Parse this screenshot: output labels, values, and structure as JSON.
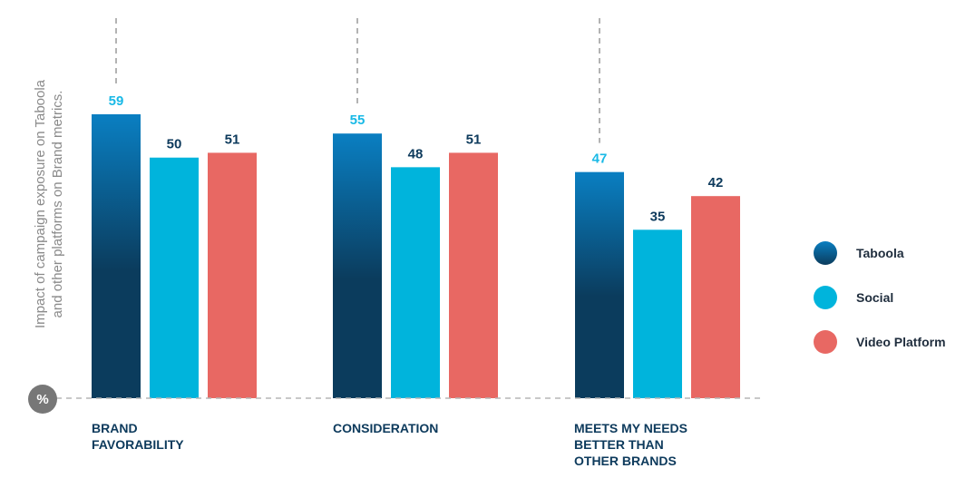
{
  "chart_data": {
    "type": "bar",
    "ylabel_lines": [
      "Impact of campaign exposure on Taboola",
      "and other platforms on Brand metrics."
    ],
    "unit_badge": "%",
    "categories": [
      {
        "lines": [
          "BRAND",
          "FAVORABILITY"
        ]
      },
      {
        "lines": [
          "CONSIDERATION"
        ]
      },
      {
        "lines": [
          "MEETS MY NEEDS",
          "BETTER THAN",
          "OTHER BRANDS"
        ]
      }
    ],
    "series": [
      {
        "name": "Taboola",
        "values": [
          59,
          55,
          47
        ],
        "color": "#0b3c5d",
        "color_top": "#0a7fc2",
        "label_color": "#19b9e6"
      },
      {
        "name": "Social",
        "values": [
          50,
          48,
          35
        ],
        "color": "#00b4dc",
        "label_color": "#0d3a5c"
      },
      {
        "name": "Video Platform",
        "values": [
          51,
          51,
          42
        ],
        "color": "#e86863",
        "label_color": "#0d3a5c"
      }
    ],
    "ylim": [
      0,
      80
    ],
    "grid": false,
    "legend_position": "right"
  }
}
